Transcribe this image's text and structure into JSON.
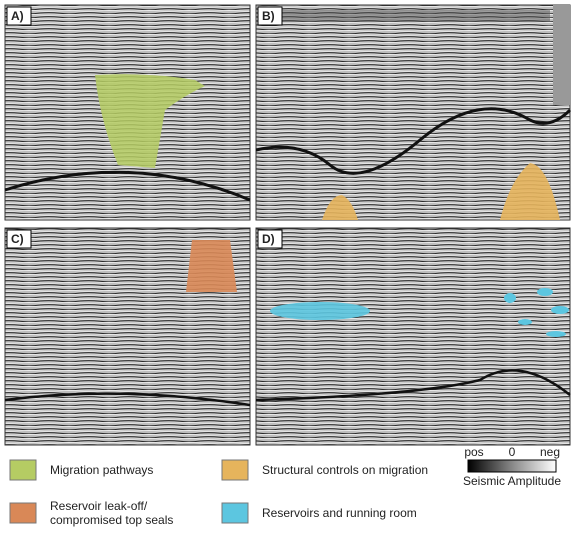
{
  "panels": [
    {
      "label": "A)"
    },
    {
      "label": "B)"
    },
    {
      "label": "C)"
    },
    {
      "label": "D)"
    }
  ],
  "legend": [
    {
      "lines": [
        "Migration pathways"
      ],
      "color": "#b5cc63"
    },
    {
      "lines": [
        "Structural controls on migration"
      ],
      "color": "#e6b45c"
    },
    {
      "lines": [
        "Reservoir leak-off/",
        "compromised top seals"
      ],
      "color": "#d98857"
    },
    {
      "lines": [
        "Reservoirs and running room"
      ],
      "color": "#5cc6e0"
    }
  ],
  "colorbar": {
    "ticks": [
      "pos",
      0,
      "neg"
    ],
    "label": "Seismic Amplitude"
  }
}
